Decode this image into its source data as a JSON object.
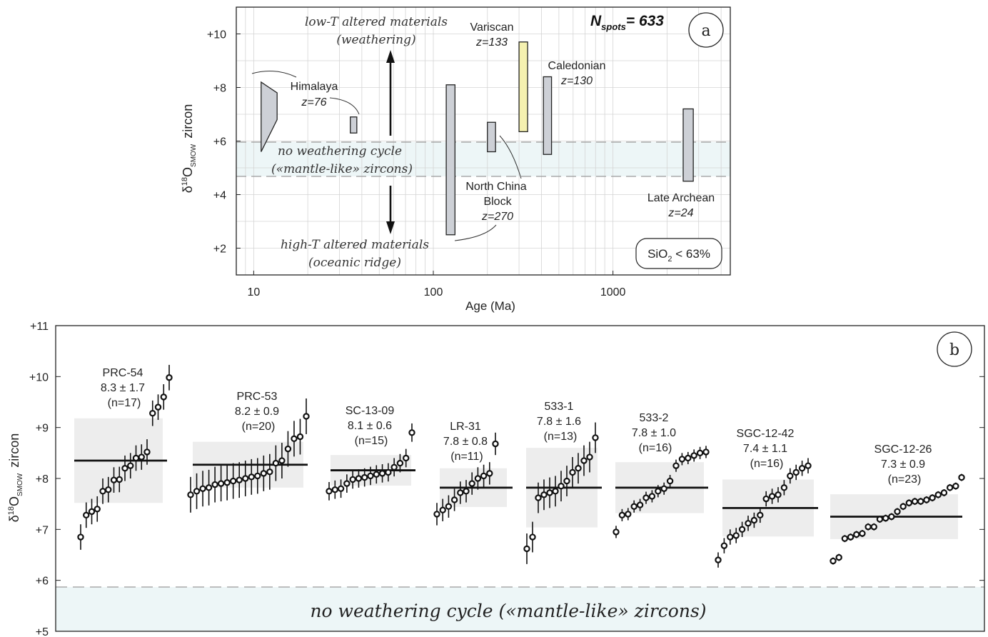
{
  "chart_data": [
    {
      "type": "range",
      "panel_label": "a",
      "xscale": "log",
      "xlim": [
        8,
        4500
      ],
      "ylim": [
        1,
        11
      ],
      "xlabel": "Age (Ma)",
      "ylabel_main": "δ",
      "ylabel_sup": "18",
      "ylabel_o": "O",
      "ylabel_sub": "SMOW",
      "ylabel_tail": "zircon",
      "x_ticks": [
        10,
        100,
        1000
      ],
      "x_tick_labels": [
        "10",
        "100",
        "1000"
      ],
      "y_ticks": [
        2,
        4,
        6,
        8,
        10
      ],
      "y_tick_labels": [
        "+2",
        "+4",
        "+6",
        "+8",
        "+10"
      ],
      "grid": true,
      "nspots_n": "N",
      "nspots_sub": "spots",
      "nspots_value": "= 633",
      "sio2_label": "SiO",
      "sio2_sub": "2",
      "sio2_value": " < 63%",
      "mantle_band": [
        4.7,
        6.0
      ],
      "band_label_1": "no weathering cycle",
      "band_label_2": "(«mantle-like» zircons)",
      "low_t_label_1": "low-T altered materials",
      "low_t_label_2": "(weathering)",
      "high_t_label_1": "high-T altered materials",
      "high_t_label_2": "(oceanic ridge)",
      "himalaya_polygon": [
        [
          11,
          5.6
        ],
        [
          11,
          8.2
        ],
        [
          13.5,
          7.8
        ],
        [
          13.5,
          6.8
        ]
      ],
      "ranges": [
        {
          "age_min": 34.5,
          "age_max": 37.5,
          "ymin": 6.3,
          "ymax": 6.9,
          "color": "#cdd0d6"
        },
        {
          "age_min": 118,
          "age_max": 132,
          "ymin": 2.5,
          "ymax": 8.1,
          "color": "#cdd0d6"
        },
        {
          "age_min": 200,
          "age_max": 222,
          "ymin": 5.6,
          "ymax": 6.7,
          "color": "#cdd0d6"
        },
        {
          "age_min": 300,
          "age_max": 335,
          "ymin": 6.35,
          "ymax": 9.7,
          "color": "#f5f1b0"
        },
        {
          "age_min": 410,
          "age_max": 455,
          "ymin": 5.5,
          "ymax": 8.4,
          "color": "#cdd0d6"
        },
        {
          "age_min": 2460,
          "age_max": 2800,
          "ymin": 4.5,
          "ymax": 7.2,
          "color": "#cdd0d6"
        }
      ],
      "groups": [
        {
          "name": "Himalaya",
          "z": "z=76"
        },
        {
          "name": "Variscan",
          "z": "z=133"
        },
        {
          "name": "Caledonian",
          "z": "z=130"
        },
        {
          "name_1": "North China",
          "name_2": "Block",
          "z": "z=270"
        },
        {
          "name": "Late Archean",
          "z": "z=24"
        }
      ]
    },
    {
      "type": "scatter",
      "panel_label": "b",
      "ylim": [
        5,
        11
      ],
      "ylabel_main": "δ",
      "ylabel_sup": "18",
      "ylabel_o": "O",
      "ylabel_sub": "SMOW",
      "ylabel_tail": "zircon",
      "y_ticks": [
        5,
        6,
        7,
        8,
        9,
        10,
        11
      ],
      "y_tick_labels": [
        "+5",
        "+6",
        "+7",
        "+8",
        "+9",
        "+10",
        "+11"
      ],
      "mantle_line": 5.85,
      "band_label": "no weathering cycle («mantle-like» zircons)",
      "samples": [
        {
          "name": "PRC-54",
          "stat": "8.3 ± 1.7",
          "n": "(n=17)",
          "mean": 8.35,
          "sd": 0.83,
          "err": 0.25,
          "values": [
            6.85,
            7.28,
            7.35,
            7.4,
            7.75,
            7.78,
            7.97,
            7.98,
            8.2,
            8.25,
            8.4,
            8.42,
            8.52,
            9.28,
            9.4,
            9.6,
            9.98
          ]
        },
        {
          "name": "PRC-53",
          "stat": "8.2 ± 0.9",
          "n": "(n=20)",
          "mean": 8.27,
          "sd": 0.45,
          "err": 0.35,
          "values": [
            7.68,
            7.75,
            7.8,
            7.82,
            7.88,
            7.9,
            7.92,
            7.95,
            7.97,
            8.0,
            8.03,
            8.05,
            8.1,
            8.13,
            8.3,
            8.35,
            8.58,
            8.78,
            8.82,
            9.22
          ]
        },
        {
          "name": "SC-13-09",
          "stat": "8.1 ± 0.6",
          "n": "(n=15)",
          "mean": 8.16,
          "sd": 0.3,
          "err": 0.18,
          "values": [
            7.75,
            7.78,
            7.8,
            7.9,
            7.98,
            8.0,
            8.02,
            8.05,
            8.08,
            8.1,
            8.12,
            8.22,
            8.3,
            8.4,
            8.9
          ]
        },
        {
          "name": "LR-31",
          "stat": "7.8 ± 0.8",
          "n": "(n=11)",
          "mean": 7.82,
          "sd": 0.38,
          "err": 0.22,
          "values": [
            7.3,
            7.38,
            7.45,
            7.58,
            7.72,
            7.75,
            7.9,
            8.0,
            8.05,
            8.1,
            8.68
          ]
        },
        {
          "name": "533-1",
          "stat": "7.8 ± 1.6",
          "n": "(n=13)",
          "mean": 7.82,
          "sd": 0.78,
          "err": 0.3,
          "values": [
            6.62,
            6.85,
            7.62,
            7.68,
            7.72,
            7.75,
            7.85,
            7.95,
            8.12,
            8.2,
            8.35,
            8.42,
            8.8
          ]
        },
        {
          "name": "533-2",
          "stat": "7.8 ± 1.0",
          "n": "(n=16)",
          "mean": 7.82,
          "sd": 0.5,
          "err": 0.12,
          "values": [
            6.95,
            7.28,
            7.3,
            7.45,
            7.48,
            7.62,
            7.65,
            7.75,
            7.8,
            7.95,
            8.25,
            8.38,
            8.4,
            8.45,
            8.5,
            8.52
          ]
        },
        {
          "name": "SGC-12-42",
          "stat": "7.4 ± 1.1",
          "n": "(n=16)",
          "mean": 7.42,
          "sd": 0.56,
          "err": 0.15,
          "values": [
            6.4,
            6.68,
            6.85,
            6.88,
            7.0,
            7.12,
            7.18,
            7.28,
            7.6,
            7.65,
            7.68,
            7.82,
            8.05,
            8.12,
            8.2,
            8.25
          ]
        },
        {
          "name": "SGC-12-26",
          "stat": "7.3 ± 0.9",
          "n": "(n=23)",
          "mean": 7.25,
          "sd": 0.44,
          "err": 0.07,
          "values": [
            6.38,
            6.45,
            6.82,
            6.85,
            6.9,
            6.92,
            7.05,
            7.05,
            7.2,
            7.22,
            7.25,
            7.35,
            7.45,
            7.52,
            7.55,
            7.55,
            7.58,
            7.62,
            7.68,
            7.72,
            7.82,
            7.85,
            8.02
          ]
        }
      ]
    }
  ]
}
